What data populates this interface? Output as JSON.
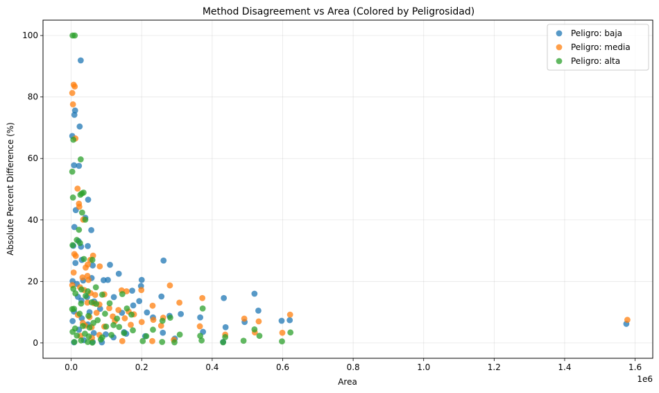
{
  "chart_data": {
    "type": "scatter",
    "title": "Method Disagreement vs Area (Colored by Peligrosidad)",
    "xlabel": "Area",
    "ylabel": "Absolute Percent Difference (%)",
    "x_offset_label": "1e6",
    "x_ticks": [
      0.0,
      0.2,
      0.4,
      0.6,
      0.8,
      1.0,
      1.2,
      1.4,
      1.6
    ],
    "y_ticks": [
      0,
      20,
      40,
      60,
      80,
      100
    ],
    "xlim": [
      -0.08,
      1.65
    ],
    "ylim": [
      -5,
      105
    ],
    "grid": true,
    "legend_position": "top-right",
    "series": [
      {
        "name": "Peligro: baja",
        "color": "#1f77b4",
        "points": [
          [
            0.003,
            67.3
          ],
          [
            0.009,
            74.2
          ],
          [
            0.011,
            75.6
          ],
          [
            0.024,
            70.4
          ],
          [
            0.027,
            91.9
          ],
          [
            0.008,
            57.8
          ],
          [
            0.022,
            57.6
          ],
          [
            0.048,
            46.6
          ],
          [
            0.013,
            43.2
          ],
          [
            0.04,
            40.7
          ],
          [
            0.009,
            37.7
          ],
          [
            0.057,
            36.7
          ],
          [
            0.006,
            31.6
          ],
          [
            0.028,
            31.3
          ],
          [
            0.047,
            31.5
          ],
          [
            0.021,
            33.1
          ],
          [
            0.012,
            26.0
          ],
          [
            0.03,
            27.0
          ],
          [
            0.061,
            25.2
          ],
          [
            0.11,
            25.4
          ],
          [
            0.262,
            26.8
          ],
          [
            0.135,
            22.5
          ],
          [
            0.004,
            20.1
          ],
          [
            0.016,
            19.2
          ],
          [
            0.034,
            20.3
          ],
          [
            0.058,
            21.1
          ],
          [
            0.092,
            20.4
          ],
          [
            0.104,
            20.5
          ],
          [
            0.2,
            20.5
          ],
          [
            0.198,
            18.5
          ],
          [
            0.173,
            17.0
          ],
          [
            0.019,
            15.0
          ],
          [
            0.029,
            13.8
          ],
          [
            0.045,
            14.9
          ],
          [
            0.065,
            13.5
          ],
          [
            0.121,
            14.9
          ],
          [
            0.176,
            12.2
          ],
          [
            0.193,
            13.6
          ],
          [
            0.256,
            15.1
          ],
          [
            0.311,
            9.4
          ],
          [
            0.008,
            10.2
          ],
          [
            0.03,
            8.0
          ],
          [
            0.052,
            10.0
          ],
          [
            0.082,
            11.1
          ],
          [
            0.144,
            9.8
          ],
          [
            0.215,
            9.9
          ],
          [
            0.232,
            8.3
          ],
          [
            0.279,
            8.8
          ],
          [
            0.366,
            8.3
          ],
          [
            0.433,
            14.6
          ],
          [
            0.52,
            16.0
          ],
          [
            0.531,
            10.5
          ],
          [
            0.597,
            7.2
          ],
          [
            0.62,
            7.4
          ],
          [
            0.004,
            7.1
          ],
          [
            0.022,
            4.3
          ],
          [
            0.047,
            6.0
          ],
          [
            0.064,
            3.2
          ],
          [
            0.098,
            2.8
          ],
          [
            0.15,
            3.5
          ],
          [
            0.156,
            3.0
          ],
          [
            0.21,
            2.2
          ],
          [
            0.26,
            3.3
          ],
          [
            0.294,
            1.4
          ],
          [
            0.374,
            3.6
          ],
          [
            0.438,
            5.1
          ],
          [
            0.492,
            6.8
          ],
          [
            0.008,
            0.2
          ],
          [
            0.036,
            0.9
          ],
          [
            0.061,
            0.3
          ],
          [
            0.087,
            0.2
          ],
          [
            0.12,
            1.8
          ],
          [
            0.431,
            0.3
          ],
          [
            1.575,
            6.2
          ]
        ]
      },
      {
        "name": "Peligro: media",
        "color": "#ff7f0e",
        "points": [
          [
            0.003,
            81.3
          ],
          [
            0.005,
            77.6
          ],
          [
            0.007,
            84.0
          ],
          [
            0.01,
            83.4
          ],
          [
            0.012,
            66.5
          ],
          [
            0.018,
            50.2
          ],
          [
            0.022,
            45.3
          ],
          [
            0.023,
            44.3
          ],
          [
            0.034,
            40.1
          ],
          [
            0.009,
            28.9
          ],
          [
            0.013,
            28.3
          ],
          [
            0.041,
            24.5
          ],
          [
            0.047,
            25.5
          ],
          [
            0.054,
            27.0
          ],
          [
            0.062,
            28.4
          ],
          [
            0.081,
            24.9
          ],
          [
            0.007,
            22.9
          ],
          [
            0.032,
            21.3
          ],
          [
            0.046,
            21.8
          ],
          [
            0.049,
            20.5
          ],
          [
            0.003,
            18.8
          ],
          [
            0.025,
            18.1
          ],
          [
            0.037,
            17.2
          ],
          [
            0.055,
            16.2
          ],
          [
            0.068,
            15.6
          ],
          [
            0.094,
            15.8
          ],
          [
            0.143,
            17.1
          ],
          [
            0.157,
            16.8
          ],
          [
            0.199,
            17.2
          ],
          [
            0.28,
            18.7
          ],
          [
            0.372,
            14.6
          ],
          [
            0.046,
            13.1
          ],
          [
            0.065,
            12.9
          ],
          [
            0.08,
            12.5
          ],
          [
            0.108,
            11.3
          ],
          [
            0.134,
            10.7
          ],
          [
            0.163,
            10.2
          ],
          [
            0.231,
            12.1
          ],
          [
            0.307,
            13.1
          ],
          [
            0.019,
            9.1
          ],
          [
            0.052,
            8.4
          ],
          [
            0.072,
            9.8
          ],
          [
            0.118,
            8.6
          ],
          [
            0.152,
            8.0
          ],
          [
            0.178,
            9.3
          ],
          [
            0.233,
            7.5
          ],
          [
            0.261,
            8.2
          ],
          [
            0.033,
            6.5
          ],
          [
            0.04,
            5.6
          ],
          [
            0.058,
            5.1
          ],
          [
            0.094,
            5.3
          ],
          [
            0.124,
            7.1
          ],
          [
            0.169,
            5.9
          ],
          [
            0.2,
            6.8
          ],
          [
            0.255,
            5.6
          ],
          [
            0.365,
            5.4
          ],
          [
            0.491,
            7.9
          ],
          [
            0.532,
            7.0
          ],
          [
            0.621,
            9.2
          ],
          [
            0.026,
            2.3
          ],
          [
            0.059,
            1.6
          ],
          [
            0.08,
            2.6
          ],
          [
            0.145,
            0.6
          ],
          [
            0.23,
            0.6
          ],
          [
            0.291,
            1.0
          ],
          [
            0.437,
            2.7
          ],
          [
            0.599,
            3.3
          ],
          [
            0.521,
            3.4
          ],
          [
            1.578,
            7.5
          ]
        ]
      },
      {
        "name": "Peligro: alta",
        "color": "#2ca02c",
        "points": [
          [
            0.004,
            100.0
          ],
          [
            0.01,
            100.0
          ],
          [
            0.006,
            66.1
          ],
          [
            0.027,
            59.7
          ],
          [
            0.003,
            55.7
          ],
          [
            0.005,
            47.3
          ],
          [
            0.03,
            48.6
          ],
          [
            0.035,
            48.9
          ],
          [
            0.026,
            48.2
          ],
          [
            0.031,
            42.4
          ],
          [
            0.04,
            40.1
          ],
          [
            0.022,
            36.8
          ],
          [
            0.004,
            31.8
          ],
          [
            0.016,
            33.5
          ],
          [
            0.025,
            32.5
          ],
          [
            0.036,
            27.3
          ],
          [
            0.06,
            27.0
          ],
          [
            0.006,
            17.6
          ],
          [
            0.012,
            16.1
          ],
          [
            0.029,
            17.4
          ],
          [
            0.047,
            16.8
          ],
          [
            0.07,
            18.1
          ],
          [
            0.088,
            15.7
          ],
          [
            0.145,
            15.9
          ],
          [
            0.003,
            11.0
          ],
          [
            0.008,
            11.1
          ],
          [
            0.028,
            12.8
          ],
          [
            0.041,
            15.3
          ],
          [
            0.058,
            13.2
          ],
          [
            0.071,
            12.7
          ],
          [
            0.109,
            12.9
          ],
          [
            0.158,
            11.2
          ],
          [
            0.024,
            9.5
          ],
          [
            0.049,
            8.8
          ],
          [
            0.075,
            7.4
          ],
          [
            0.096,
            9.5
          ],
          [
            0.13,
            7.9
          ],
          [
            0.171,
            9.2
          ],
          [
            0.259,
            7.2
          ],
          [
            0.281,
            8.2
          ],
          [
            0.373,
            11.2
          ],
          [
            0.011,
            4.7
          ],
          [
            0.033,
            5.5
          ],
          [
            0.052,
            5.0
          ],
          [
            0.063,
            6.5
          ],
          [
            0.099,
            5.3
          ],
          [
            0.12,
            5.8
          ],
          [
            0.136,
            5.2
          ],
          [
            0.175,
            4.1
          ],
          [
            0.232,
            4.3
          ],
          [
            0.004,
            3.6
          ],
          [
            0.016,
            2.4
          ],
          [
            0.039,
            3.0
          ],
          [
            0.05,
            2.1
          ],
          [
            0.088,
            1.8
          ],
          [
            0.114,
            2.6
          ],
          [
            0.15,
            3.2
          ],
          [
            0.213,
            2.2
          ],
          [
            0.308,
            2.7
          ],
          [
            0.366,
            2.3
          ],
          [
            0.437,
            1.9
          ],
          [
            0.52,
            4.4
          ],
          [
            0.534,
            2.3
          ],
          [
            0.622,
            3.4
          ],
          [
            0.009,
            0.3
          ],
          [
            0.028,
            0.8
          ],
          [
            0.047,
            0.3
          ],
          [
            0.06,
            0.1
          ],
          [
            0.084,
            1.1
          ],
          [
            0.203,
            0.6
          ],
          [
            0.258,
            0.3
          ],
          [
            0.293,
            0.2
          ],
          [
            0.37,
            0.8
          ],
          [
            0.431,
            0.2
          ],
          [
            0.489,
            0.7
          ],
          [
            0.598,
            0.5
          ]
        ]
      }
    ]
  }
}
